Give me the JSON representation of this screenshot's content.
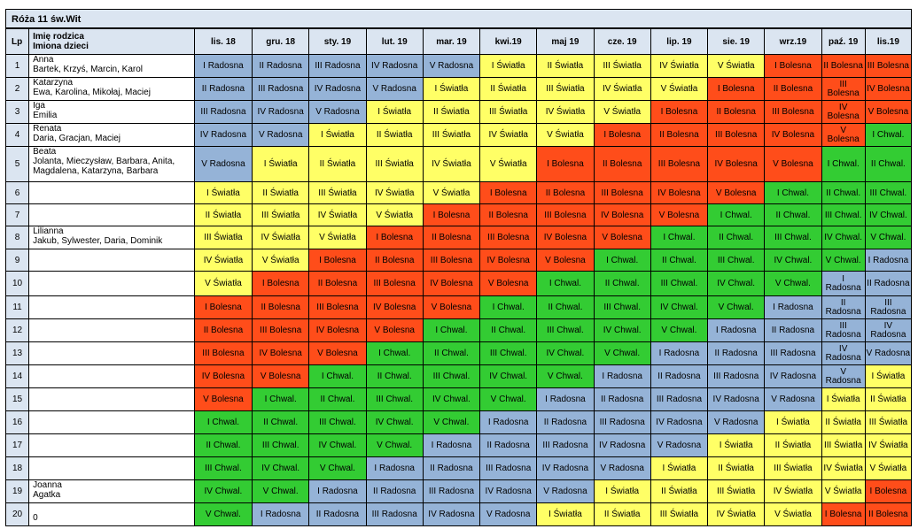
{
  "title": "Róża 11 św.Wit",
  "headers": {
    "lp": "Lp",
    "parent": "Imię rodzica",
    "children": "Imiona dzieci",
    "months": [
      "lis. 18",
      "gru. 18",
      "sty. 19",
      "lut. 19",
      "mar. 19",
      "kwi.19",
      "maj 19",
      "cze. 19",
      "lip. 19",
      "sie. 19",
      "wrz.19",
      "paź. 19",
      "lis.19"
    ]
  },
  "colors": {
    "Radosna": "#95b3d7",
    "Światła": "#ffff66",
    "Bolesna": "#ff4d1a",
    "Chwal.": "#33cc33",
    "header": "#dbe5f1"
  },
  "rows": [
    {
      "lp": "1",
      "parent": "Anna",
      "children": "Bartek, Krzyś, Marcin, Karol",
      "cells": [
        "I Radosna",
        "II Radosna",
        "III Radosna",
        "IV Radosna",
        "V Radosna",
        "I Światła",
        "II Światła",
        "III Światła",
        "IV Światła",
        "V Światła",
        "I Bolesna",
        "II Bolesna",
        "III Bolesna"
      ]
    },
    {
      "lp": "2",
      "parent": "Katarzyna",
      "children": "Ewa, Karolina, Mikołaj, Maciej",
      "cells": [
        "II Radosna",
        "III Radosna",
        "IV Radosna",
        "V Radosna",
        "I Światła",
        "II Światła",
        "III Światła",
        "IV Światła",
        "V Światła",
        "I Bolesna",
        "II Bolesna",
        "III Bolesna",
        "IV Bolesna"
      ]
    },
    {
      "lp": "3",
      "parent": "Iga",
      "children": "Emilia",
      "cells": [
        "III Radosna",
        "IV Radosna",
        "V Radosna",
        "I Światła",
        "II Światła",
        "III Światła",
        "IV Światła",
        "V Światła",
        "I Bolesna",
        "II Bolesna",
        "III Bolesna",
        "IV Bolesna",
        "V Bolesna"
      ]
    },
    {
      "lp": "4",
      "parent": "Renata",
      "children": "Daria, Gracjan, Maciej",
      "cells": [
        "IV Radosna",
        "V Radosna",
        "I Światła",
        "II Światła",
        "III Światła",
        "IV Światła",
        "V Światła",
        "I Bolesna",
        "II Bolesna",
        "III Bolesna",
        "IV Bolesna",
        "V Bolesna",
        "I Chwal."
      ]
    },
    {
      "lp": "5",
      "parent": "Beata",
      "children": "Jolanta, Mieczysław, Barbara, Anita,",
      "children2": "Magdalena, Katarzyna, Barbara",
      "cells": [
        "V Radosna",
        "I Światła",
        "II Światła",
        "III Światła",
        "IV Światła",
        "V Światła",
        "I Bolesna",
        "II Bolesna",
        "III Bolesna",
        "IV Bolesna",
        "V Bolesna",
        "I Chwal.",
        "II Chwal."
      ]
    },
    {
      "lp": "6",
      "parent": "",
      "children": "",
      "cells": [
        "I Światła",
        "II Światła",
        "III Światła",
        "IV Światła",
        "V Światła",
        "I Bolesna",
        "II Bolesna",
        "III Bolesna",
        "IV Bolesna",
        "V Bolesna",
        "I Chwal.",
        "II Chwal.",
        "III Chwal."
      ]
    },
    {
      "lp": "7",
      "parent": "",
      "children": "",
      "cells": [
        "II Światła",
        "III Światła",
        "IV Światła",
        "V Światła",
        "I Bolesna",
        "II Bolesna",
        "III Bolesna",
        "IV Bolesna",
        "V Bolesna",
        "I Chwal.",
        "II Chwal.",
        "III Chwal.",
        "IV Chwal."
      ]
    },
    {
      "lp": "8",
      "parent": "Lilianna",
      "children": "Jakub, Sylwester, Daria, Dominik",
      "cells": [
        "III Światła",
        "IV Światła",
        "V Światła",
        "I Bolesna",
        "II Bolesna",
        "III Bolesna",
        "IV Bolesna",
        "V Bolesna",
        "I Chwal.",
        "II Chwal.",
        "III Chwal.",
        "IV Chwal.",
        "V Chwal."
      ]
    },
    {
      "lp": "9",
      "parent": "",
      "children": "",
      "cells": [
        "IV Światła",
        "V Światła",
        "I Bolesna",
        "II Bolesna",
        "III Bolesna",
        "IV Bolesna",
        "V Bolesna",
        "I Chwal.",
        "II Chwal.",
        "III Chwal.",
        "IV Chwal.",
        "V Chwal.",
        "I Radosna"
      ]
    },
    {
      "lp": "10",
      "parent": "",
      "children": "",
      "cells": [
        "V Światła",
        "I Bolesna",
        "II Bolesna",
        "III Bolesna",
        "IV Bolesna",
        "V Bolesna",
        "I Chwal.",
        "II Chwal.",
        "III Chwal.",
        "IV Chwal.",
        "V Chwal.",
        "I Radosna",
        "II Radosna"
      ]
    },
    {
      "lp": "11",
      "parent": "",
      "children": "",
      "cells": [
        "I Bolesna",
        "II Bolesna",
        "III Bolesna",
        "IV Bolesna",
        "V Bolesna",
        "I Chwal.",
        "II Chwal.",
        "III Chwal.",
        "IV Chwal.",
        "V Chwal.",
        "I Radosna",
        "II Radosna",
        "III Radosna"
      ]
    },
    {
      "lp": "12",
      "parent": "",
      "children": "",
      "cells": [
        "II Bolesna",
        "III Bolesna",
        "IV Bolesna",
        "V Bolesna",
        "I Chwal.",
        "II Chwal.",
        "III Chwal.",
        "IV Chwal.",
        "V Chwal.",
        "I Radosna",
        "II Radosna",
        "III Radosna",
        "IV Radosna"
      ]
    },
    {
      "lp": "13",
      "parent": "",
      "children": "",
      "cells": [
        "III Bolesna",
        "IV Bolesna",
        "V Bolesna",
        "I Chwal.",
        "II Chwal.",
        "III Chwal.",
        "IV Chwal.",
        "V Chwal.",
        "I Radosna",
        "II Radosna",
        "III Radosna",
        "IV Radosna",
        "V Radosna"
      ]
    },
    {
      "lp": "14",
      "parent": "",
      "children": "",
      "cells": [
        "IV Bolesna",
        "V Bolesna",
        "I Chwal.",
        "II Chwal.",
        "III Chwal.",
        "IV Chwal.",
        "V Chwal.",
        "I Radosna",
        "II Radosna",
        "III Radosna",
        "IV Radosna",
        "V Radosna",
        "I Światła"
      ]
    },
    {
      "lp": "15",
      "parent": "",
      "children": "",
      "cells": [
        "V Bolesna",
        "I Chwal.",
        "II Chwal.",
        "III Chwal.",
        "IV Chwal.",
        "V Chwal.",
        "I Radosna",
        "II Radosna",
        "III Radosna",
        "IV Radosna",
        "V Radosna",
        "I Światła",
        "II Światła"
      ]
    },
    {
      "lp": "16",
      "parent": "",
      "children": "",
      "cells": [
        "I Chwal.",
        "II Chwal.",
        "III Chwal.",
        "IV Chwal.",
        "V Chwal.",
        "I Radosna",
        "II Radosna",
        "III Radosna",
        "IV Radosna",
        "V Radosna",
        "I Światła",
        "II Światła",
        "III Światła"
      ]
    },
    {
      "lp": "17",
      "parent": "",
      "children": "",
      "cells": [
        "II Chwal.",
        "III Chwal.",
        "IV Chwal.",
        "V Chwal.",
        "I Radosna",
        "II Radosna",
        "III Radosna",
        "IV Radosna",
        "V Radosna",
        "I Światła",
        "II Światła",
        "III Światła",
        "IV Światła"
      ]
    },
    {
      "lp": "18",
      "parent": "",
      "children": "",
      "cells": [
        "III Chwal.",
        "IV Chwal.",
        "V Chwal.",
        "I Radosna",
        "II Radosna",
        "III Radosna",
        "IV Radosna",
        "V Radosna",
        "I Światła",
        "II Światła",
        "III Światła",
        "IV Światła",
        "V Światła"
      ]
    },
    {
      "lp": "19",
      "parent": "Joanna",
      "children": "Agatka",
      "cells": [
        "IV Chwal.",
        "V Chwal.",
        "I Radosna",
        "II Radosna",
        "III Radosna",
        "IV Radosna",
        "V Radosna",
        "I Światła",
        "II Światła",
        "III Światła",
        "IV Światła",
        "V Światła",
        "I Bolesna"
      ]
    },
    {
      "lp": "20",
      "parent": "",
      "children": "0",
      "cells": [
        "V Chwal.",
        "I Radosna",
        "II Radosna",
        "III Radosna",
        "IV Radosna",
        "V Radosna",
        "I Światła",
        "II Światła",
        "III Światła",
        "IV Światła",
        "V Światła",
        "I Bolesna",
        "II Bolesna"
      ]
    }
  ]
}
